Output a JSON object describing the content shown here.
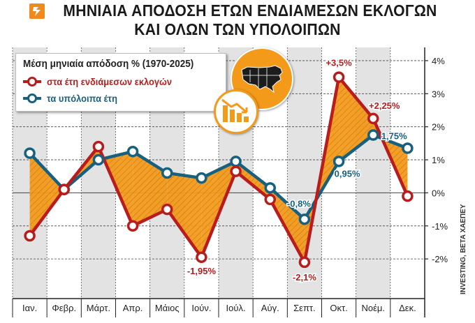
{
  "title": {
    "line1": "ΜΗΝΙΑΙΑ ΑΠΟΔΟΣΗ ΕΤΩΝ ΕΝΔΙΑΜΕΣΩΝ ΕΚΛΟΓΩΝ",
    "line2": "ΚΑΙ ΟΛΩΝ ΤΩΝ ΥΠΟΛΟΙΠΩΝ"
  },
  "credit": "INVESTING, BETA ΧΑΕΠΕΥ",
  "colors": {
    "midterm": "#b81c1c",
    "other": "#17607f",
    "fill": "#f39a1b",
    "shade": "#e3e3e3"
  },
  "icons": [
    "usa-map-icon",
    "declining-bars-icon",
    "brand-logo-icon"
  ],
  "chart_data": {
    "type": "line",
    "title": "Μέση μηνιαία απόδοση % (1970-2025)",
    "categories": [
      "Ιαν.",
      "Φεβρ.",
      "Μάρτ.",
      "Απρ.",
      "Μάιος",
      "Ιούν.",
      "Ιούλ.",
      "Αύγ.",
      "Σεπτ.",
      "Οκτ.",
      "Νοέμ.",
      "Δεκ."
    ],
    "series": [
      {
        "name": "στα έτη ενδιάμεσων εκλογών",
        "values": [
          -1.3,
          0.1,
          1.4,
          -1.0,
          -0.5,
          -1.95,
          0.65,
          -0.2,
          -2.1,
          3.5,
          2.25,
          -0.1
        ]
      },
      {
        "name": "τα υπόλοιπα έτη",
        "values": [
          1.2,
          0.1,
          1.0,
          1.25,
          0.6,
          0.45,
          0.95,
          0.15,
          -0.8,
          0.95,
          1.75,
          1.35
        ]
      }
    ],
    "ylim": [
      -3.2,
      4.4
    ],
    "yticks": [
      -2,
      -1,
      0,
      1,
      2,
      3,
      4
    ],
    "ytick_labels": [
      "-2%",
      "-1%",
      "0%",
      "1%",
      "2%",
      "3%",
      "4%"
    ],
    "annotations": [
      {
        "series": 0,
        "index": 5,
        "text": "-1,95%"
      },
      {
        "series": 0,
        "index": 8,
        "text": "-2,1%"
      },
      {
        "series": 1,
        "index": 8,
        "text": "-0,8%"
      },
      {
        "series": 0,
        "index": 9,
        "text": "+3,5%"
      },
      {
        "series": 1,
        "index": 9,
        "text": "0,95%"
      },
      {
        "series": 0,
        "index": 10,
        "text": "+2,25%"
      },
      {
        "series": 1,
        "index": 10,
        "text": "1,75%"
      }
    ],
    "grid": true,
    "legend": "top-left"
  }
}
